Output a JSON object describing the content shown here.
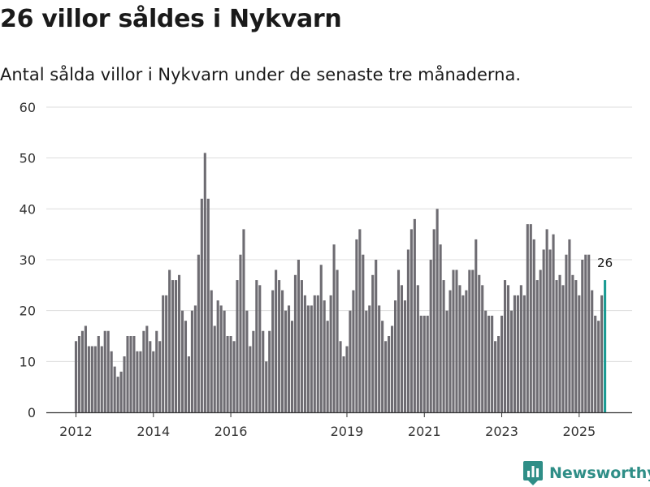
{
  "brand": {
    "name": "Newsworthy",
    "color": "#2f8e87"
  },
  "colors": {
    "bar": "#6e6c72",
    "highlight": "#1b9b94",
    "grid": "#dddddd",
    "axis": "#333333"
  },
  "chart_data": {
    "type": "bar",
    "title": "26 villor såldes i Nykvarn",
    "subtitle": "Antal sålda villor i Nykvarn under de senaste tre månaderna.",
    "xlabel": "",
    "ylabel": "",
    "ylim": [
      0,
      60
    ],
    "yticks": [
      0,
      10,
      20,
      30,
      40,
      50,
      60
    ],
    "xticks": [
      {
        "label": "2012",
        "index": 0
      },
      {
        "label": "2014",
        "index": 24
      },
      {
        "label": "2016",
        "index": 48
      },
      {
        "label": "2019",
        "index": 84
      },
      {
        "label": "2021",
        "index": 108
      },
      {
        "label": "2023",
        "index": 132
      },
      {
        "label": "2025",
        "index": 156
      }
    ],
    "grid": true,
    "start": "2012-01",
    "frequency": "monthly",
    "values": [
      14,
      15,
      16,
      17,
      13,
      13,
      13,
      15,
      13,
      16,
      16,
      12,
      9,
      7,
      8,
      11,
      15,
      15,
      15,
      12,
      12,
      16,
      17,
      14,
      12,
      16,
      14,
      23,
      23,
      28,
      26,
      26,
      27,
      20,
      18,
      11,
      20,
      21,
      31,
      42,
      51,
      42,
      24,
      17,
      22,
      21,
      20,
      15,
      15,
      14,
      26,
      31,
      36,
      20,
      13,
      16,
      26,
      25,
      16,
      10,
      16,
      24,
      28,
      26,
      24,
      20,
      21,
      18,
      27,
      30,
      26,
      23,
      21,
      21,
      23,
      23,
      29,
      22,
      18,
      23,
      33,
      28,
      14,
      11,
      13,
      20,
      24,
      34,
      36,
      31,
      20,
      21,
      27,
      30,
      21,
      18,
      14,
      15,
      17,
      22,
      28,
      25,
      22,
      32,
      36,
      38,
      25,
      19,
      19,
      19,
      30,
      36,
      40,
      33,
      26,
      20,
      24,
      28,
      28,
      25,
      23,
      24,
      28,
      28,
      34,
      27,
      25,
      20,
      19,
      19,
      14,
      15,
      19,
      26,
      25,
      20,
      23,
      23,
      25,
      23,
      37,
      37,
      34,
      26,
      28,
      32,
      36,
      32,
      35,
      26,
      27,
      25,
      31,
      34,
      27,
      26,
      23,
      30,
      31,
      31,
      24,
      19,
      18,
      23,
      26
    ],
    "highlight_index": 164,
    "annotation": {
      "index": 164,
      "label": "26"
    }
  }
}
